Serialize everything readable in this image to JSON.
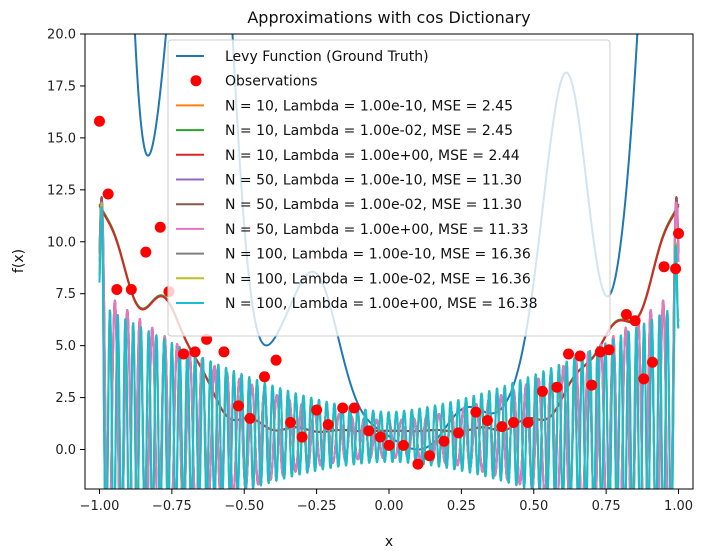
{
  "chart_data": {
    "type": "line",
    "title": "Approximations with cos Dictionary",
    "xlabel": "x",
    "ylabel": "f(x)",
    "xlim": [
      -1.05,
      1.05
    ],
    "ylim": [
      -1.9,
      20.0
    ],
    "xticks": [
      -1.0,
      -0.75,
      -0.5,
      -0.25,
      0.0,
      0.25,
      0.5,
      0.75,
      1.0
    ],
    "xtick_labels": [
      "−1.00",
      "−0.75",
      "−0.50",
      "−0.25",
      "0.00",
      "0.25",
      "0.50",
      "0.75",
      "1.00"
    ],
    "yticks": [
      0.0,
      2.5,
      5.0,
      7.5,
      10.0,
      12.5,
      15.0,
      17.5,
      20.0
    ],
    "ytick_labels": [
      "0.0",
      "2.5",
      "5.0",
      "7.5",
      "10.0",
      "12.5",
      "15.0",
      "17.5",
      "20.0"
    ],
    "grid": false,
    "legend_position": "top-center",
    "series": [
      {
        "name": "Levy Function (Ground Truth)",
        "color": "#1f77b4",
        "kind": "ground_truth"
      },
      {
        "name": "Observations",
        "color": "#ff0000",
        "kind": "observations",
        "x": [
          -1.0,
          -0.97,
          -0.94,
          -0.89,
          -0.84,
          -0.79,
          -0.76,
          -0.71,
          -0.67,
          -0.63,
          -0.57,
          -0.52,
          -0.48,
          -0.43,
          -0.39,
          -0.34,
          -0.3,
          -0.25,
          -0.21,
          -0.16,
          -0.12,
          -0.07,
          -0.03,
          0.0,
          0.05,
          0.1,
          0.14,
          0.19,
          0.24,
          0.3,
          0.34,
          0.39,
          0.43,
          0.48,
          0.53,
          0.58,
          0.62,
          0.66,
          0.7,
          0.73,
          0.76,
          0.82,
          0.85,
          0.88,
          0.91,
          0.95,
          0.99,
          1.0
        ],
        "y": [
          15.8,
          12.3,
          7.7,
          7.7,
          9.5,
          10.7,
          7.6,
          4.6,
          4.7,
          5.3,
          4.7,
          2.1,
          1.5,
          3.5,
          4.3,
          1.3,
          0.6,
          1.9,
          1.2,
          2.0,
          2.0,
          0.9,
          0.6,
          0.2,
          0.2,
          -0.7,
          -0.3,
          0.4,
          0.8,
          1.8,
          1.4,
          1.1,
          1.3,
          1.3,
          2.8,
          3.0,
          4.6,
          4.5,
          3.1,
          4.7,
          4.8,
          6.5,
          6.2,
          3.4,
          4.2,
          8.8,
          8.7,
          10.4
        ]
      },
      {
        "name": "N = 10, Lambda = 1.00e-10, MSE = 2.45",
        "color": "#ff7f0e",
        "kind": "approx",
        "N": 10
      },
      {
        "name": "N = 10, Lambda = 1.00e-02, MSE = 2.45",
        "color": "#2ca02c",
        "kind": "approx",
        "N": 10
      },
      {
        "name": "N = 10, Lambda = 1.00e+00, MSE = 2.44",
        "color": "#d62728",
        "kind": "approx",
        "N": 10
      },
      {
        "name": "N = 50, Lambda = 1.00e-10, MSE = 11.30",
        "color": "#9467bd",
        "kind": "approx",
        "N": 50
      },
      {
        "name": "N = 50, Lambda = 1.00e-02, MSE = 11.30",
        "color": "#8c564b",
        "kind": "approx",
        "N": 50
      },
      {
        "name": "N = 50, Lambda = 1.00e+00, MSE = 11.33",
        "color": "#e377c2",
        "kind": "approx",
        "N": 50
      },
      {
        "name": "N = 100, Lambda = 1.00e-10, MSE = 16.36",
        "color": "#7f7f7f",
        "kind": "approx",
        "N": 100
      },
      {
        "name": "N = 100, Lambda = 1.00e-02, MSE = 16.36",
        "color": "#bcbd22",
        "kind": "approx",
        "N": 100
      },
      {
        "name": "N = 100, Lambda = 1.00e+00, MSE = 16.38",
        "color": "#17becf",
        "kind": "approx",
        "N": 100
      }
    ]
  }
}
